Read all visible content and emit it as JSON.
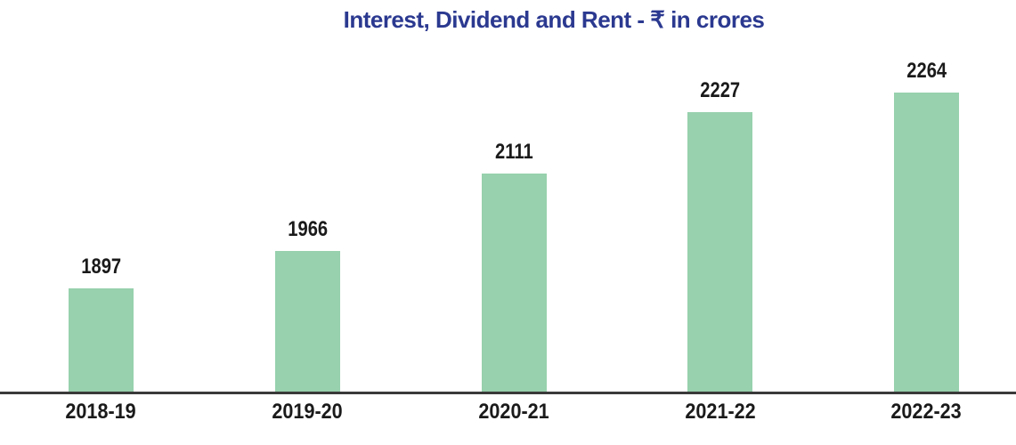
{
  "title": {
    "text": "Interest, Dividend and Rent - ₹ in crores"
  },
  "colors": {
    "background": "#ffffff",
    "title_blue": "#2b3990",
    "bar_green": "#97d1ad",
    "label_black": "#1a1a1a",
    "axis_line": "#3a3a3a"
  },
  "chart_data": {
    "type": "bar",
    "title": "Interest, Dividend and Rent - ₹ in crores",
    "categories": [
      "2018-19",
      "2019-20",
      "2020-21",
      "2021-22",
      "2022-23"
    ],
    "values": [
      1897,
      1966,
      2111,
      2227,
      2264
    ],
    "data_labels": [
      "1897",
      "1966",
      "2111",
      "2227",
      "2264"
    ],
    "series": [
      {
        "name": "Interest, Dividend and Rent (₹ in crores)",
        "values": [
          1897,
          1966,
          2111,
          2227,
          2264
        ]
      }
    ],
    "xlabel": "",
    "ylabel": "",
    "ylim": [
      1700,
      2300
    ],
    "grid": false,
    "legend": false,
    "bar_color": "#97d1ad",
    "data_label_position": "above-bar",
    "x_axis_line": "full-width dark baseline, no tick marks"
  }
}
